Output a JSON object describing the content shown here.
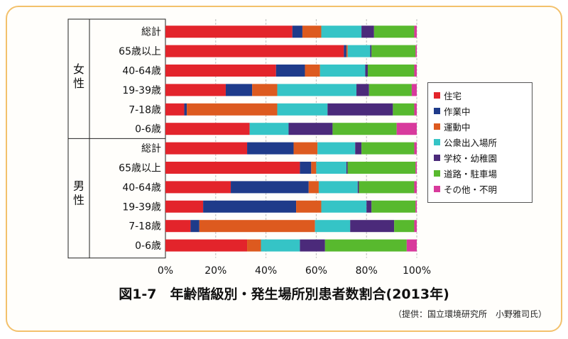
{
  "figure": {
    "title": "図1-7　年齢階級別・発生場所別患者数割合(2013年)",
    "credit": "（提供：国立環境研究所　小野雅司氏）"
  },
  "legend_items": [
    {
      "label": "住宅",
      "color": "#e3242b"
    },
    {
      "label": "作業中",
      "color": "#1f3b8a"
    },
    {
      "label": "運動中",
      "color": "#dd5a1f"
    },
    {
      "label": "公衆出入場所",
      "color": "#35c4c6"
    },
    {
      "label": "学校・幼稚園",
      "color": "#4b2a7a"
    },
    {
      "label": "道路・駐車場",
      "color": "#58b92e"
    },
    {
      "label": "その他・不明",
      "color": "#d83a9c"
    }
  ],
  "chart_data": {
    "type": "bar",
    "orientation": "horizontal",
    "stacked": true,
    "xlim": [
      0,
      100
    ],
    "x_ticks": [
      "0%",
      "20%",
      "40%",
      "60%",
      "80%",
      "100%"
    ],
    "groups": [
      {
        "label": "女性",
        "categories": [
          "総計",
          "65歳以上",
          "40-64歳",
          "19-39歳",
          "7-18歳",
          "0-6歳"
        ]
      },
      {
        "label": "男性",
        "categories": [
          "総計",
          "65歳以上",
          "40-64歳",
          "19-39歳",
          "7-18歳",
          "0-6歳"
        ]
      }
    ],
    "series_names": [
      "住宅",
      "作業中",
      "運動中",
      "公衆出入場所",
      "学校・幼稚園",
      "道路・駐車場",
      "その他・不明"
    ],
    "rows": [
      {
        "group": "女性",
        "category": "総計",
        "values": [
          50.5,
          4,
          7.5,
          16,
          5,
          16,
          1
        ]
      },
      {
        "group": "女性",
        "category": "65歳以上",
        "values": [
          71,
          1,
          0.5,
          9,
          0.5,
          17.5,
          0.5
        ]
      },
      {
        "group": "女性",
        "category": "40-64歳",
        "values": [
          44,
          11.5,
          6,
          18,
          1,
          18.5,
          1
        ]
      },
      {
        "group": "女性",
        "category": "19-39歳",
        "values": [
          24,
          10.5,
          10,
          31.5,
          5,
          17,
          2
        ]
      },
      {
        "group": "女性",
        "category": "7-18歳",
        "values": [
          7.5,
          1,
          36,
          20,
          26,
          8.5,
          1
        ]
      },
      {
        "group": "女性",
        "category": "0-6歳",
        "values": [
          33.5,
          0,
          0,
          15.5,
          17.5,
          25.5,
          8
        ]
      },
      {
        "group": "男性",
        "category": "総計",
        "values": [
          32.5,
          18.5,
          9.5,
          15,
          2.5,
          21,
          1
        ]
      },
      {
        "group": "男性",
        "category": "65歳以上",
        "values": [
          53.5,
          4.5,
          2,
          12,
          0.5,
          27,
          0.5
        ]
      },
      {
        "group": "男性",
        "category": "40-64歳",
        "values": [
          26,
          31,
          4,
          15.5,
          0.5,
          22,
          1
        ]
      },
      {
        "group": "男性",
        "category": "19-39歳",
        "values": [
          15,
          37,
          10,
          18,
          2,
          17.5,
          0.5
        ]
      },
      {
        "group": "男性",
        "category": "7-18歳",
        "values": [
          10,
          3.5,
          46,
          14,
          17.5,
          8,
          1
        ]
      },
      {
        "group": "男性",
        "category": "0-6歳",
        "values": [
          32.5,
          0,
          5.5,
          15.5,
          10,
          32.5,
          4
        ]
      }
    ]
  }
}
